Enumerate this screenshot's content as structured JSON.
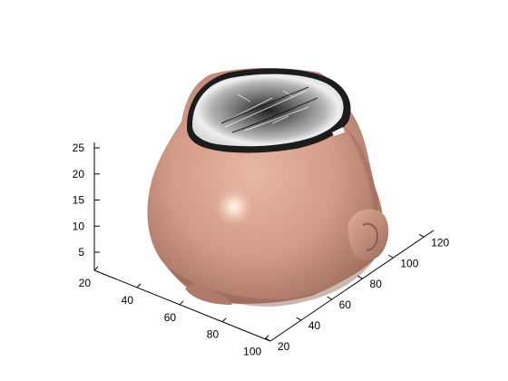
{
  "chart_data": {
    "type": "surface3d",
    "title": "",
    "xlabel": "",
    "ylabel": "",
    "zlabel": "",
    "x_ticks": [
      20,
      40,
      60,
      80,
      100
    ],
    "y_ticks": [
      20,
      40,
      60,
      80,
      100,
      120
    ],
    "z_ticks": [
      5,
      10,
      15,
      20,
      25
    ],
    "colors": {
      "skin": "#d8a08e",
      "skin_shadow": "#9a6a5c",
      "skin_highlight": "#fff4e8",
      "brain_slice_light": "#f3f3f3",
      "brain_slice_dark": "#3a3a3a",
      "axis": "#000000"
    },
    "grid": false
  }
}
